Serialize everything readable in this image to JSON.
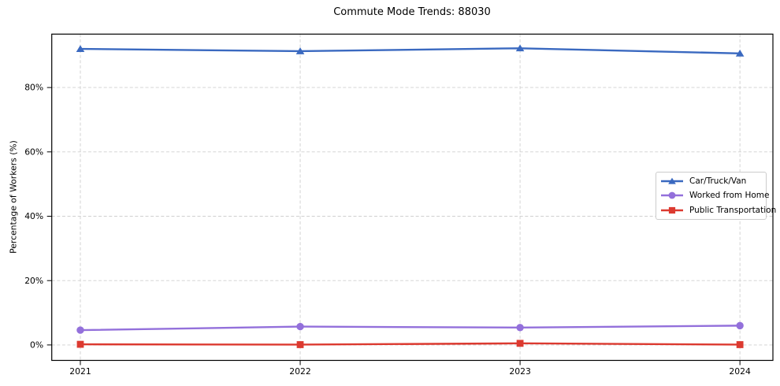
{
  "figure": {
    "background": "#ffffff"
  },
  "chart_data": {
    "type": "line",
    "title": "Commute Mode Trends: 88030",
    "xlabel": "",
    "ylabel": "Percentage of Workers (%)",
    "x": [
      2021,
      2022,
      2023,
      2024
    ],
    "x_tick_labels": [
      "2021",
      "2022",
      "2023",
      "2024"
    ],
    "y_ticks": [
      0,
      20,
      40,
      60,
      80
    ],
    "y_tick_labels": [
      "0%",
      "20%",
      "40%",
      "60%",
      "80%"
    ],
    "xlim": [
      2020.87,
      2024.15
    ],
    "ylim": [
      -4.8,
      96.6
    ],
    "grid": true,
    "grid_style": "dashed",
    "legend_position": "center right",
    "series": [
      {
        "name": "Car/Truck/Van",
        "color": "#3A69C0",
        "marker": "triangle",
        "values": [
          92.0,
          91.3,
          92.2,
          90.6
        ]
      },
      {
        "name": "Worked from Home",
        "color": "#9370DB",
        "marker": "circle",
        "values": [
          4.6,
          5.7,
          5.4,
          6.0
        ]
      },
      {
        "name": "Public Transportation",
        "color": "#DC3A30",
        "marker": "square",
        "values": [
          0.2,
          0.1,
          0.5,
          0.1
        ]
      }
    ],
    "axis_color": "#000000",
    "grid_color": "#cfcfcf",
    "tick_label_color": "#000000"
  }
}
